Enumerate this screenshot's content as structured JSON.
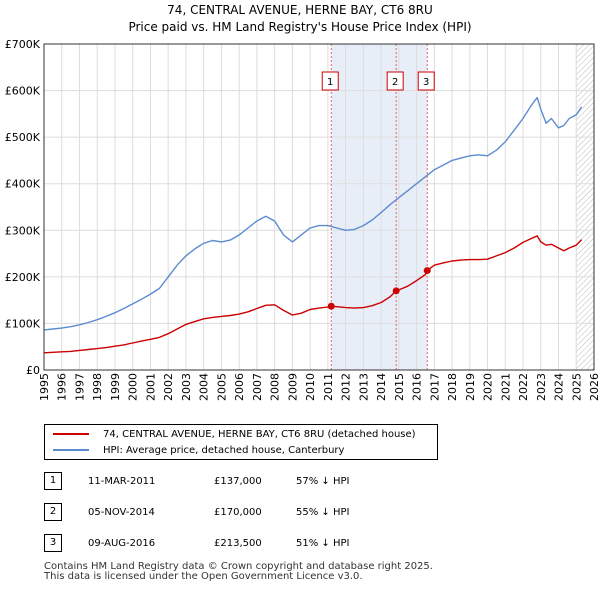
{
  "title": {
    "line1": "74, CENTRAL AVENUE, HERNE BAY, CT6 8RU",
    "line2": "Price paid vs. HM Land Registry's House Price Index (HPI)"
  },
  "chart_data": {
    "type": "line",
    "title": "74, CENTRAL AVENUE, HERNE BAY, CT6 8RU - Price paid vs. HM Land Registry's House Price Index (HPI)",
    "xlabel": "",
    "ylabel": "",
    "xlim": [
      1995,
      2026
    ],
    "ylim": [
      0,
      700000
    ],
    "x_ticks": [
      "1995",
      "1996",
      "1997",
      "1998",
      "1999",
      "2000",
      "2001",
      "2002",
      "2003",
      "2004",
      "2005",
      "2006",
      "2007",
      "2008",
      "2009",
      "2010",
      "2011",
      "2012",
      "2013",
      "2014",
      "2015",
      "2016",
      "2017",
      "2018",
      "2019",
      "2020",
      "2021",
      "2022",
      "2023",
      "2024",
      "2025",
      "2026"
    ],
    "y_ticks": [
      {
        "value": 0,
        "label": "£0"
      },
      {
        "value": 100000,
        "label": "£100K"
      },
      {
        "value": 200000,
        "label": "£200K"
      },
      {
        "value": 300000,
        "label": "£300K"
      },
      {
        "value": 400000,
        "label": "£400K"
      },
      {
        "value": 500000,
        "label": "£500K"
      },
      {
        "value": 600000,
        "label": "£600K"
      },
      {
        "value": 700000,
        "label": "£700K"
      }
    ],
    "grid": true,
    "shaded_region": {
      "from": 2011.19,
      "to": 2016.6,
      "color": "#e8eef8"
    },
    "future_hatch_from": 2025.0,
    "series": [
      {
        "name": "74, CENTRAL AVENUE, HERNE BAY, CT6 8RU (detached house)",
        "color": "#cc0000",
        "x": [
          1995,
          1995.5,
          1996,
          1996.5,
          1997,
          1997.5,
          1998,
          1998.5,
          1999,
          1999.5,
          2000,
          2000.5,
          2001,
          2001.5,
          2002,
          2002.5,
          2003,
          2003.5,
          2004,
          2004.5,
          2005,
          2005.5,
          2006,
          2006.5,
          2007,
          2007.5,
          2008,
          2008.5,
          2009,
          2009.5,
          2010,
          2010.5,
          2011,
          2011.19,
          2011.5,
          2012,
          2012.5,
          2013,
          2013.5,
          2014,
          2014.5,
          2014.85,
          2015,
          2015.5,
          2016,
          2016.5,
          2016.6,
          2017,
          2017.5,
          2018,
          2018.5,
          2019,
          2019.5,
          2020,
          2020.5,
          2021,
          2021.5,
          2022,
          2022.5,
          2022.8,
          2023,
          2023.3,
          2023.6,
          2024,
          2024.3,
          2024.6,
          2025,
          2025.3
        ],
        "y": [
          37000,
          38000,
          39000,
          40000,
          42000,
          44000,
          46000,
          48000,
          51000,
          54000,
          58000,
          62000,
          66000,
          70000,
          78000,
          88000,
          98000,
          104000,
          110000,
          113000,
          115000,
          117000,
          120000,
          125000,
          132000,
          139000,
          140000,
          128000,
          118000,
          122000,
          130000,
          133000,
          135000,
          137000,
          136000,
          134000,
          133000,
          134000,
          138000,
          145000,
          157000,
          170000,
          172000,
          180000,
          192000,
          205000,
          213500,
          225000,
          230000,
          234000,
          236000,
          237000,
          237000,
          238000,
          245000,
          252000,
          262000,
          274000,
          283000,
          288000,
          275000,
          268000,
          270000,
          262000,
          256000,
          262000,
          268000,
          280000
        ]
      },
      {
        "name": "HPI: Average price, detached house, Canterbury",
        "color": "#5b8bd0",
        "x": [
          1995,
          1995.5,
          1996,
          1996.5,
          1997,
          1997.5,
          1998,
          1998.5,
          1999,
          1999.5,
          2000,
          2000.5,
          2001,
          2001.5,
          2002,
          2002.5,
          2003,
          2003.5,
          2004,
          2004.5,
          2005,
          2005.5,
          2006,
          2006.5,
          2007,
          2007.5,
          2008,
          2008.5,
          2009,
          2009.5,
          2010,
          2010.5,
          2011,
          2011.5,
          2012,
          2012.5,
          2013,
          2013.5,
          2014,
          2014.5,
          2015,
          2015.5,
          2016,
          2016.5,
          2017,
          2017.5,
          2018,
          2018.5,
          2019,
          2019.5,
          2020,
          2020.5,
          2021,
          2021.5,
          2022,
          2022.5,
          2022.8,
          2023,
          2023.3,
          2023.6,
          2024,
          2024.3,
          2024.6,
          2025,
          2025.3
        ],
        "y": [
          86000,
          88000,
          90000,
          93000,
          97000,
          102000,
          108000,
          115000,
          123000,
          132000,
          142000,
          152000,
          163000,
          175000,
          200000,
          225000,
          245000,
          260000,
          272000,
          278000,
          275000,
          279000,
          290000,
          305000,
          320000,
          330000,
          320000,
          290000,
          275000,
          290000,
          305000,
          310000,
          310000,
          305000,
          300000,
          302000,
          310000,
          322000,
          338000,
          355000,
          370000,
          385000,
          400000,
          415000,
          430000,
          440000,
          450000,
          455000,
          460000,
          462000,
          460000,
          472000,
          490000,
          515000,
          540000,
          570000,
          585000,
          560000,
          530000,
          540000,
          520000,
          525000,
          540000,
          548000,
          565000
        ]
      }
    ],
    "sales": [
      {
        "marker": "1",
        "x": 2011.19,
        "price": 137000
      },
      {
        "marker": "2",
        "x": 2014.85,
        "price": 170000
      },
      {
        "marker": "3",
        "x": 2016.6,
        "price": 213500
      }
    ]
  },
  "legend": {
    "items": [
      {
        "label": "74, CENTRAL AVENUE, HERNE BAY, CT6 8RU (detached house)",
        "color": "#cc0000"
      },
      {
        "label": "HPI: Average price, detached house, Canterbury",
        "color": "#5b8bd0"
      }
    ]
  },
  "sales_table": [
    {
      "num": "1",
      "date": "11-MAR-2011",
      "price": "£137,000",
      "hpi": "57% ↓ HPI"
    },
    {
      "num": "2",
      "date": "05-NOV-2014",
      "price": "£170,000",
      "hpi": "55% ↓ HPI"
    },
    {
      "num": "3",
      "date": "09-AUG-2016",
      "price": "£213,500",
      "hpi": "51% ↓ HPI"
    }
  ],
  "footer": {
    "line1": "Contains HM Land Registry data © Crown copyright and database right 2025.",
    "line2": "This data is licensed under the Open Government Licence v3.0."
  }
}
